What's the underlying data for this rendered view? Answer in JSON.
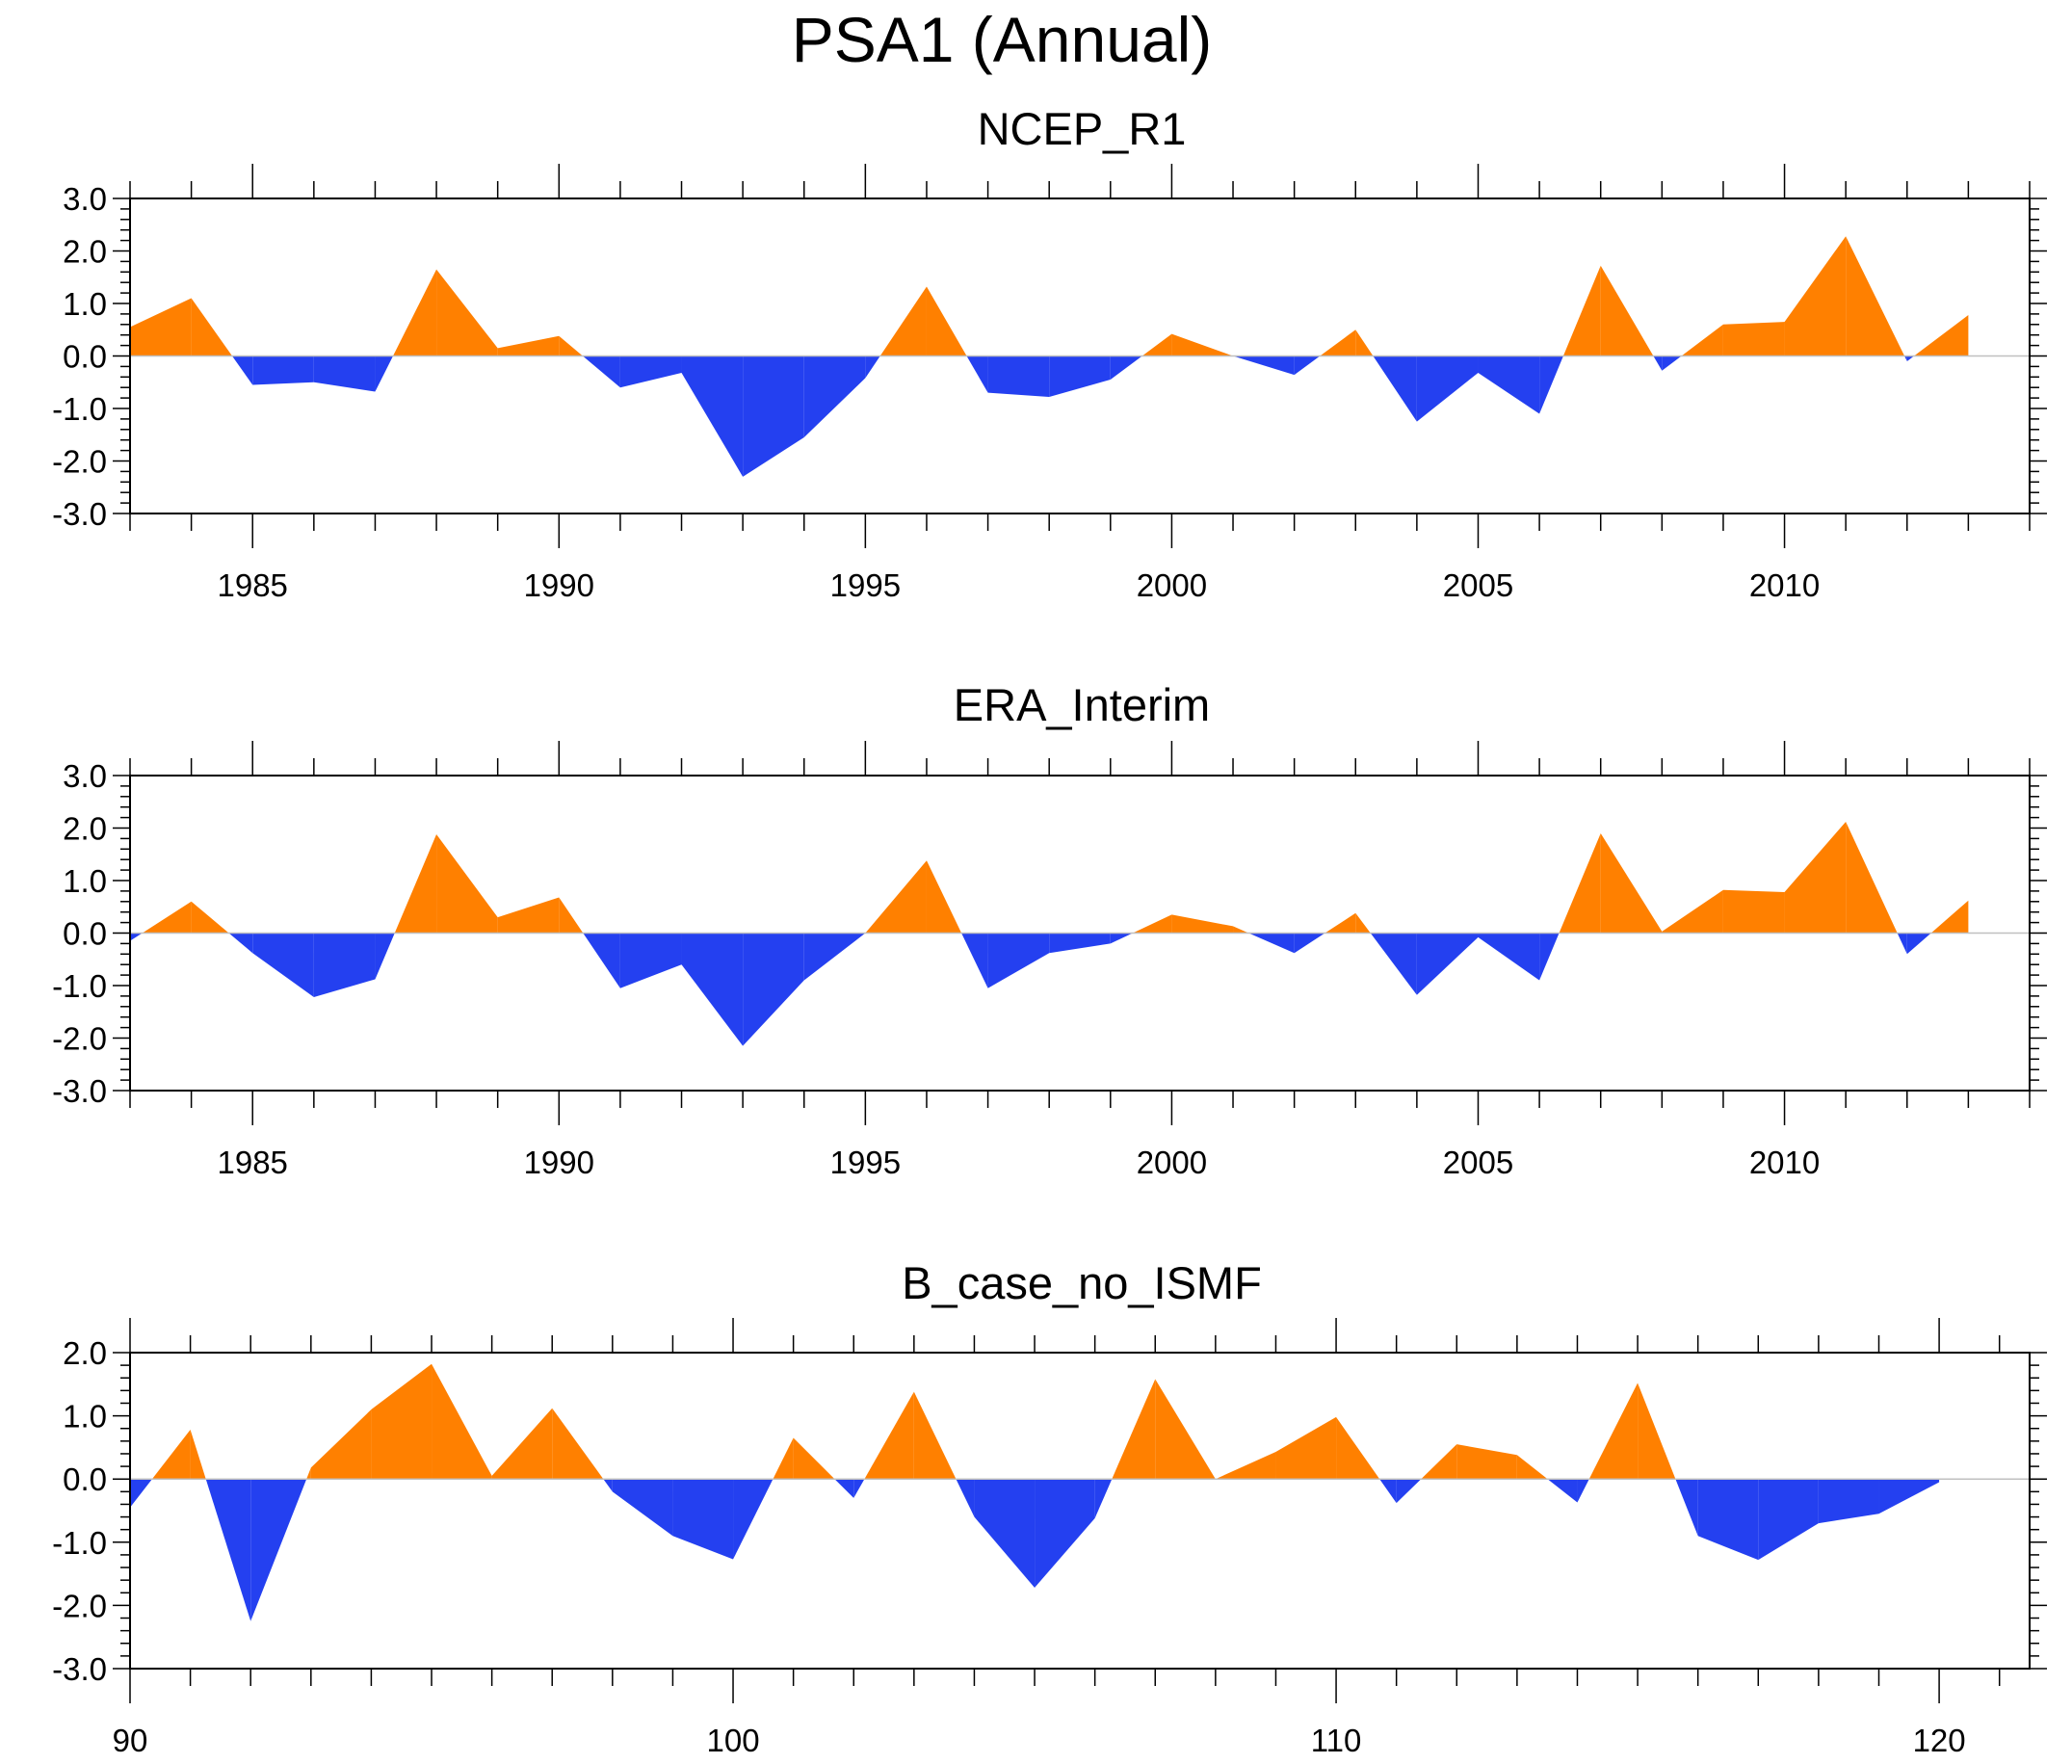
{
  "title": "PSA1 (Annual)",
  "colors": {
    "positive": "#ff8000",
    "negative": "#2440f0",
    "axis": "#000000",
    "zero_line": "#c0c0c0"
  },
  "chart_data": [
    {
      "type": "area",
      "title": "NCEP_R1",
      "x": [
        1983,
        1984,
        1985,
        1986,
        1987,
        1988,
        1989,
        1990,
        1991,
        1992,
        1993,
        1994,
        1995,
        1996,
        1997,
        1998,
        1999,
        2000,
        2001,
        2002,
        2003,
        2004,
        2005,
        2006,
        2007,
        2008,
        2009,
        2010,
        2011,
        2012,
        2013
      ],
      "values": [
        0.55,
        1.1,
        -0.55,
        -0.5,
        -0.68,
        1.65,
        0.15,
        0.38,
        -0.6,
        -0.32,
        -2.3,
        -1.55,
        -0.42,
        1.32,
        -0.7,
        -0.78,
        -0.45,
        0.42,
        0.0,
        -0.36,
        0.5,
        -1.25,
        -0.32,
        -1.1,
        1.72,
        -0.28,
        0.6,
        0.65,
        2.28,
        -0.1,
        0.78
      ],
      "xlim": [
        1983,
        2014
      ],
      "ylim": [
        -3.0,
        3.0
      ],
      "x_ticks": [
        "1985",
        "1990",
        "1995",
        "2000",
        "2005",
        "2010"
      ],
      "y_ticks": [
        "3.0",
        "2.0",
        "1.0",
        "0.0",
        "-1.0",
        "-2.0",
        "-3.0"
      ]
    },
    {
      "type": "area",
      "title": "ERA_Interim",
      "x": [
        1983,
        1984,
        1985,
        1986,
        1987,
        1988,
        1989,
        1990,
        1991,
        1992,
        1993,
        1994,
        1995,
        1996,
        1997,
        1998,
        1999,
        2000,
        2001,
        2002,
        2003,
        2004,
        2005,
        2006,
        2007,
        2008,
        2009,
        2010,
        2011,
        2012,
        2013
      ],
      "values": [
        -0.15,
        0.6,
        -0.38,
        -1.22,
        -0.88,
        1.88,
        0.3,
        0.68,
        -1.05,
        -0.6,
        -2.15,
        -0.9,
        0.0,
        1.38,
        -1.05,
        -0.38,
        -0.2,
        0.35,
        0.13,
        -0.38,
        0.38,
        -1.18,
        -0.08,
        -0.9,
        1.9,
        0.03,
        0.82,
        0.78,
        2.12,
        -0.4,
        0.62
      ],
      "xlim": [
        1983,
        2014
      ],
      "ylim": [
        -3.0,
        3.0
      ],
      "x_ticks": [
        "1985",
        "1990",
        "1995",
        "2000",
        "2005",
        "2010"
      ],
      "y_ticks": [
        "3.0",
        "2.0",
        "1.0",
        "0.0",
        "-1.0",
        "-2.0",
        "-3.0"
      ]
    },
    {
      "type": "area",
      "title": "B_case_no_ISMF",
      "x": [
        90,
        91,
        92,
        93,
        94,
        95,
        96,
        97,
        98,
        99,
        100,
        101,
        102,
        103,
        104,
        105,
        106,
        107,
        108,
        109,
        110,
        111,
        112,
        113,
        114,
        115,
        116,
        117,
        118,
        119,
        120
      ],
      "values": [
        -0.45,
        0.78,
        -2.25,
        0.18,
        1.1,
        1.82,
        0.05,
        1.12,
        -0.2,
        -0.9,
        -1.27,
        0.65,
        -0.3,
        1.38,
        -0.6,
        -1.72,
        -0.62,
        1.58,
        0.0,
        0.43,
        0.98,
        -0.38,
        0.55,
        0.38,
        -0.37,
        1.52,
        -0.9,
        -1.28,
        -0.7,
        -0.55,
        -0.05
      ],
      "xlim": [
        90,
        121.5
      ],
      "ylim": [
        -3.0,
        2.0
      ],
      "x_ticks": [
        "90",
        "100",
        "110",
        "120"
      ],
      "y_ticks": [
        "2.0",
        "1.0",
        "0.0",
        "-1.0",
        "-2.0",
        "-3.0"
      ]
    }
  ]
}
